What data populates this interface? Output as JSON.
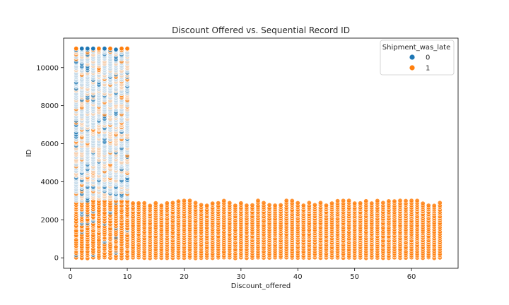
{
  "chart_data": {
    "type": "scatter",
    "title": "Discount Offered vs. Sequential Record ID",
    "xlabel": "Discount_offered",
    "ylabel": "ID",
    "xlim": [
      -1.2,
      68.2
    ],
    "ylim": [
      -550,
      11550
    ],
    "xticks": [
      0,
      10,
      20,
      30,
      40,
      50,
      60
    ],
    "yticks": [
      0,
      2000,
      4000,
      6000,
      8000,
      10000
    ],
    "grid": false,
    "legend": {
      "title": "Shipment_was_late",
      "placement": "top-right",
      "entries": [
        {
          "label": "0",
          "color": "#1f77b4"
        },
        {
          "label": "1",
          "color": "#ff7f0e"
        }
      ]
    },
    "series": [
      {
        "name": "0",
        "color": "#1f77b4",
        "description_points": [
          {
            "x": 2,
            "y": 11000
          },
          {
            "x": 3,
            "y": 11000
          },
          {
            "x": 4,
            "y": 11000
          },
          {
            "x": 6,
            "y": 11000
          },
          {
            "x": 8,
            "y": 10950
          }
        ]
      },
      {
        "name": "1",
        "color": "#ff7f0e",
        "description_points": [
          {
            "x": 1,
            "y": 11000
          },
          {
            "x": 5,
            "y": 11000
          },
          {
            "x": 7,
            "y": 11000
          },
          {
            "x": 9,
            "y": 11000
          },
          {
            "x": 10,
            "y": 11000
          }
        ]
      }
    ],
    "bands": [
      {
        "x_from": 1,
        "x_to": 10,
        "y_from": 1,
        "y_to": 10999,
        "mix": "both"
      },
      {
        "x_from": 11,
        "x_to": 65,
        "y_from": 1,
        "y_to": 3100,
        "mix": "1"
      }
    ]
  }
}
